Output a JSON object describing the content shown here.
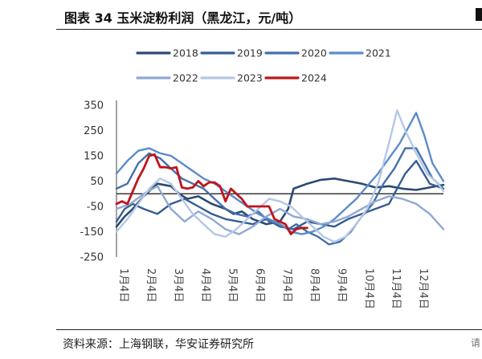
{
  "title": "图表 34  玉米淀粉利润（黑龙江，元/吨）",
  "source": "资料来源：上海钢联，华安证券研究所",
  "corner_fragment": "请",
  "chart_data": {
    "type": "line",
    "title": "玉米淀粉利润（黑龙江，元/吨）",
    "xlabel": "",
    "ylabel": "",
    "ylim": [
      -250,
      350
    ],
    "yticks": [
      350,
      250,
      150,
      50,
      -50,
      -150,
      -250
    ],
    "categories": [
      "1月4日",
      "2月4日",
      "3月4日",
      "4月4日",
      "5月4日",
      "6月4日",
      "7月4日",
      "8月4日",
      "9月4日",
      "10月4日",
      "11月4日",
      "12月4日"
    ],
    "x_unit": "month index (0 = 1月4日)",
    "zero_line": true,
    "series": [
      {
        "name": "2018",
        "color": "#2c4a73",
        "width": 2.6,
        "x": [
          0,
          0.3,
          0.6,
          1,
          1.5,
          2,
          2.3,
          2.6,
          3,
          3.5,
          4,
          4.3,
          4.6,
          5,
          5.5,
          6,
          6.3,
          6.5,
          7,
          7.5,
          8,
          8.5,
          9,
          9.5,
          10,
          10.5,
          11,
          11.5,
          12
        ],
        "values": [
          -130,
          -90,
          -60,
          -10,
          40,
          30,
          0,
          -20,
          -10,
          -40,
          -60,
          -80,
          -70,
          -100,
          -120,
          -110,
          -60,
          20,
          40,
          55,
          60,
          50,
          40,
          25,
          30,
          20,
          15,
          25,
          35
        ]
      },
      {
        "name": "2019",
        "color": "#365d92",
        "width": 2.4,
        "x": [
          0,
          0.3,
          0.6,
          1,
          1.5,
          2,
          2.5,
          3,
          3.5,
          4,
          4.5,
          5,
          5.5,
          6,
          6.5,
          7,
          7.5,
          8,
          8.5,
          9,
          9.5,
          10,
          10.3,
          10.6,
          11,
          11.5,
          12
        ],
        "values": [
          -110,
          -60,
          -40,
          -60,
          -80,
          -40,
          -20,
          -50,
          -80,
          -100,
          -110,
          -120,
          -100,
          -130,
          -140,
          -110,
          -120,
          -130,
          -100,
          -80,
          -60,
          -40,
          20,
          80,
          130,
          40,
          20
        ]
      },
      {
        "name": "2020",
        "color": "#4470aa",
        "width": 2.4,
        "x": [
          0,
          0.4,
          0.8,
          1.2,
          1.6,
          2,
          2.4,
          2.8,
          3.2,
          3.6,
          4,
          4.4,
          4.8,
          5.2,
          5.6,
          6,
          6.3,
          6.6,
          7,
          7.4,
          7.8,
          8.2,
          8.6,
          9,
          9.4,
          9.8,
          10.2,
          10.6,
          11,
          11.3,
          11.6,
          12
        ],
        "values": [
          20,
          40,
          120,
          160,
          140,
          100,
          60,
          40,
          20,
          -20,
          -60,
          -80,
          -90,
          -70,
          -110,
          -120,
          -140,
          -120,
          -150,
          -170,
          -200,
          -190,
          -150,
          -90,
          -40,
          40,
          100,
          180,
          180,
          120,
          60,
          20
        ]
      },
      {
        "name": "2021",
        "color": "#5b8cc8",
        "width": 2.4,
        "x": [
          0,
          0.4,
          0.8,
          1.2,
          1.6,
          2,
          2.4,
          2.8,
          3.2,
          3.6,
          4,
          4.4,
          4.8,
          5.2,
          5.6,
          6,
          6.4,
          6.8,
          7.2,
          7.6,
          8,
          8.4,
          8.8,
          9.2,
          9.6,
          10,
          10.4,
          10.8,
          11,
          11.3,
          11.6,
          12
        ],
        "values": [
          80,
          130,
          170,
          180,
          160,
          150,
          120,
          90,
          60,
          40,
          10,
          -20,
          -50,
          -80,
          -100,
          -120,
          -150,
          -160,
          -150,
          -130,
          -100,
          -60,
          -20,
          30,
          80,
          140,
          200,
          280,
          320,
          230,
          120,
          50
        ]
      },
      {
        "name": "2022",
        "color": "#8fa9d4",
        "width": 2.4,
        "x": [
          0,
          0.5,
          1,
          1.5,
          2,
          2.5,
          3,
          3.5,
          4,
          4.5,
          5,
          5.5,
          6,
          6.5,
          7,
          7.5,
          8,
          8.5,
          9,
          9.5,
          10,
          10.5,
          11,
          11.5,
          12
        ],
        "values": [
          -60,
          -40,
          0,
          30,
          -60,
          -110,
          -70,
          -100,
          -140,
          -160,
          -130,
          -90,
          -60,
          -90,
          -100,
          -120,
          -110,
          -90,
          -60,
          -30,
          -10,
          -20,
          -40,
          -80,
          -140
        ]
      },
      {
        "name": "2023",
        "color": "#b5c7e6",
        "width": 2.4,
        "x": [
          0,
          0.4,
          0.8,
          1.2,
          1.6,
          2,
          2.4,
          2.8,
          3.2,
          3.6,
          4,
          4.4,
          4.8,
          5.2,
          5.6,
          6,
          6.4,
          6.8,
          7.2,
          7.6,
          8,
          8.4,
          8.8,
          9.2,
          9.6,
          10,
          10.3,
          10.6,
          11,
          11.4,
          11.8,
          12
        ],
        "values": [
          -150,
          -100,
          -40,
          20,
          60,
          40,
          -20,
          -80,
          -120,
          -160,
          -170,
          -140,
          -100,
          -60,
          -20,
          -30,
          -50,
          -90,
          -130,
          -170,
          -190,
          -170,
          -120,
          -60,
          40,
          200,
          330,
          250,
          160,
          80,
          40,
          10
        ]
      },
      {
        "name": "2024",
        "color": "#c0141b",
        "width": 2.8,
        "x": [
          0,
          0.2,
          0.4,
          0.6,
          0.8,
          1,
          1.2,
          1.4,
          1.6,
          1.8,
          2,
          2.2,
          2.4,
          2.6,
          2.8,
          3,
          3.2,
          3.4,
          3.6,
          3.8,
          4,
          4.2,
          4.4,
          4.6,
          4.8,
          5,
          5.2,
          5.4,
          5.6,
          5.8,
          6,
          6.2,
          6.4,
          6.6,
          6.8,
          7
        ],
        "values": [
          -40,
          -30,
          -40,
          10,
          60,
          100,
          150,
          155,
          105,
          105,
          100,
          105,
          25,
          20,
          25,
          50,
          30,
          45,
          45,
          30,
          -30,
          20,
          0,
          -20,
          -50,
          -50,
          -50,
          -50,
          -50,
          -100,
          -110,
          -120,
          -160,
          -140,
          -135,
          -135
        ]
      }
    ]
  }
}
